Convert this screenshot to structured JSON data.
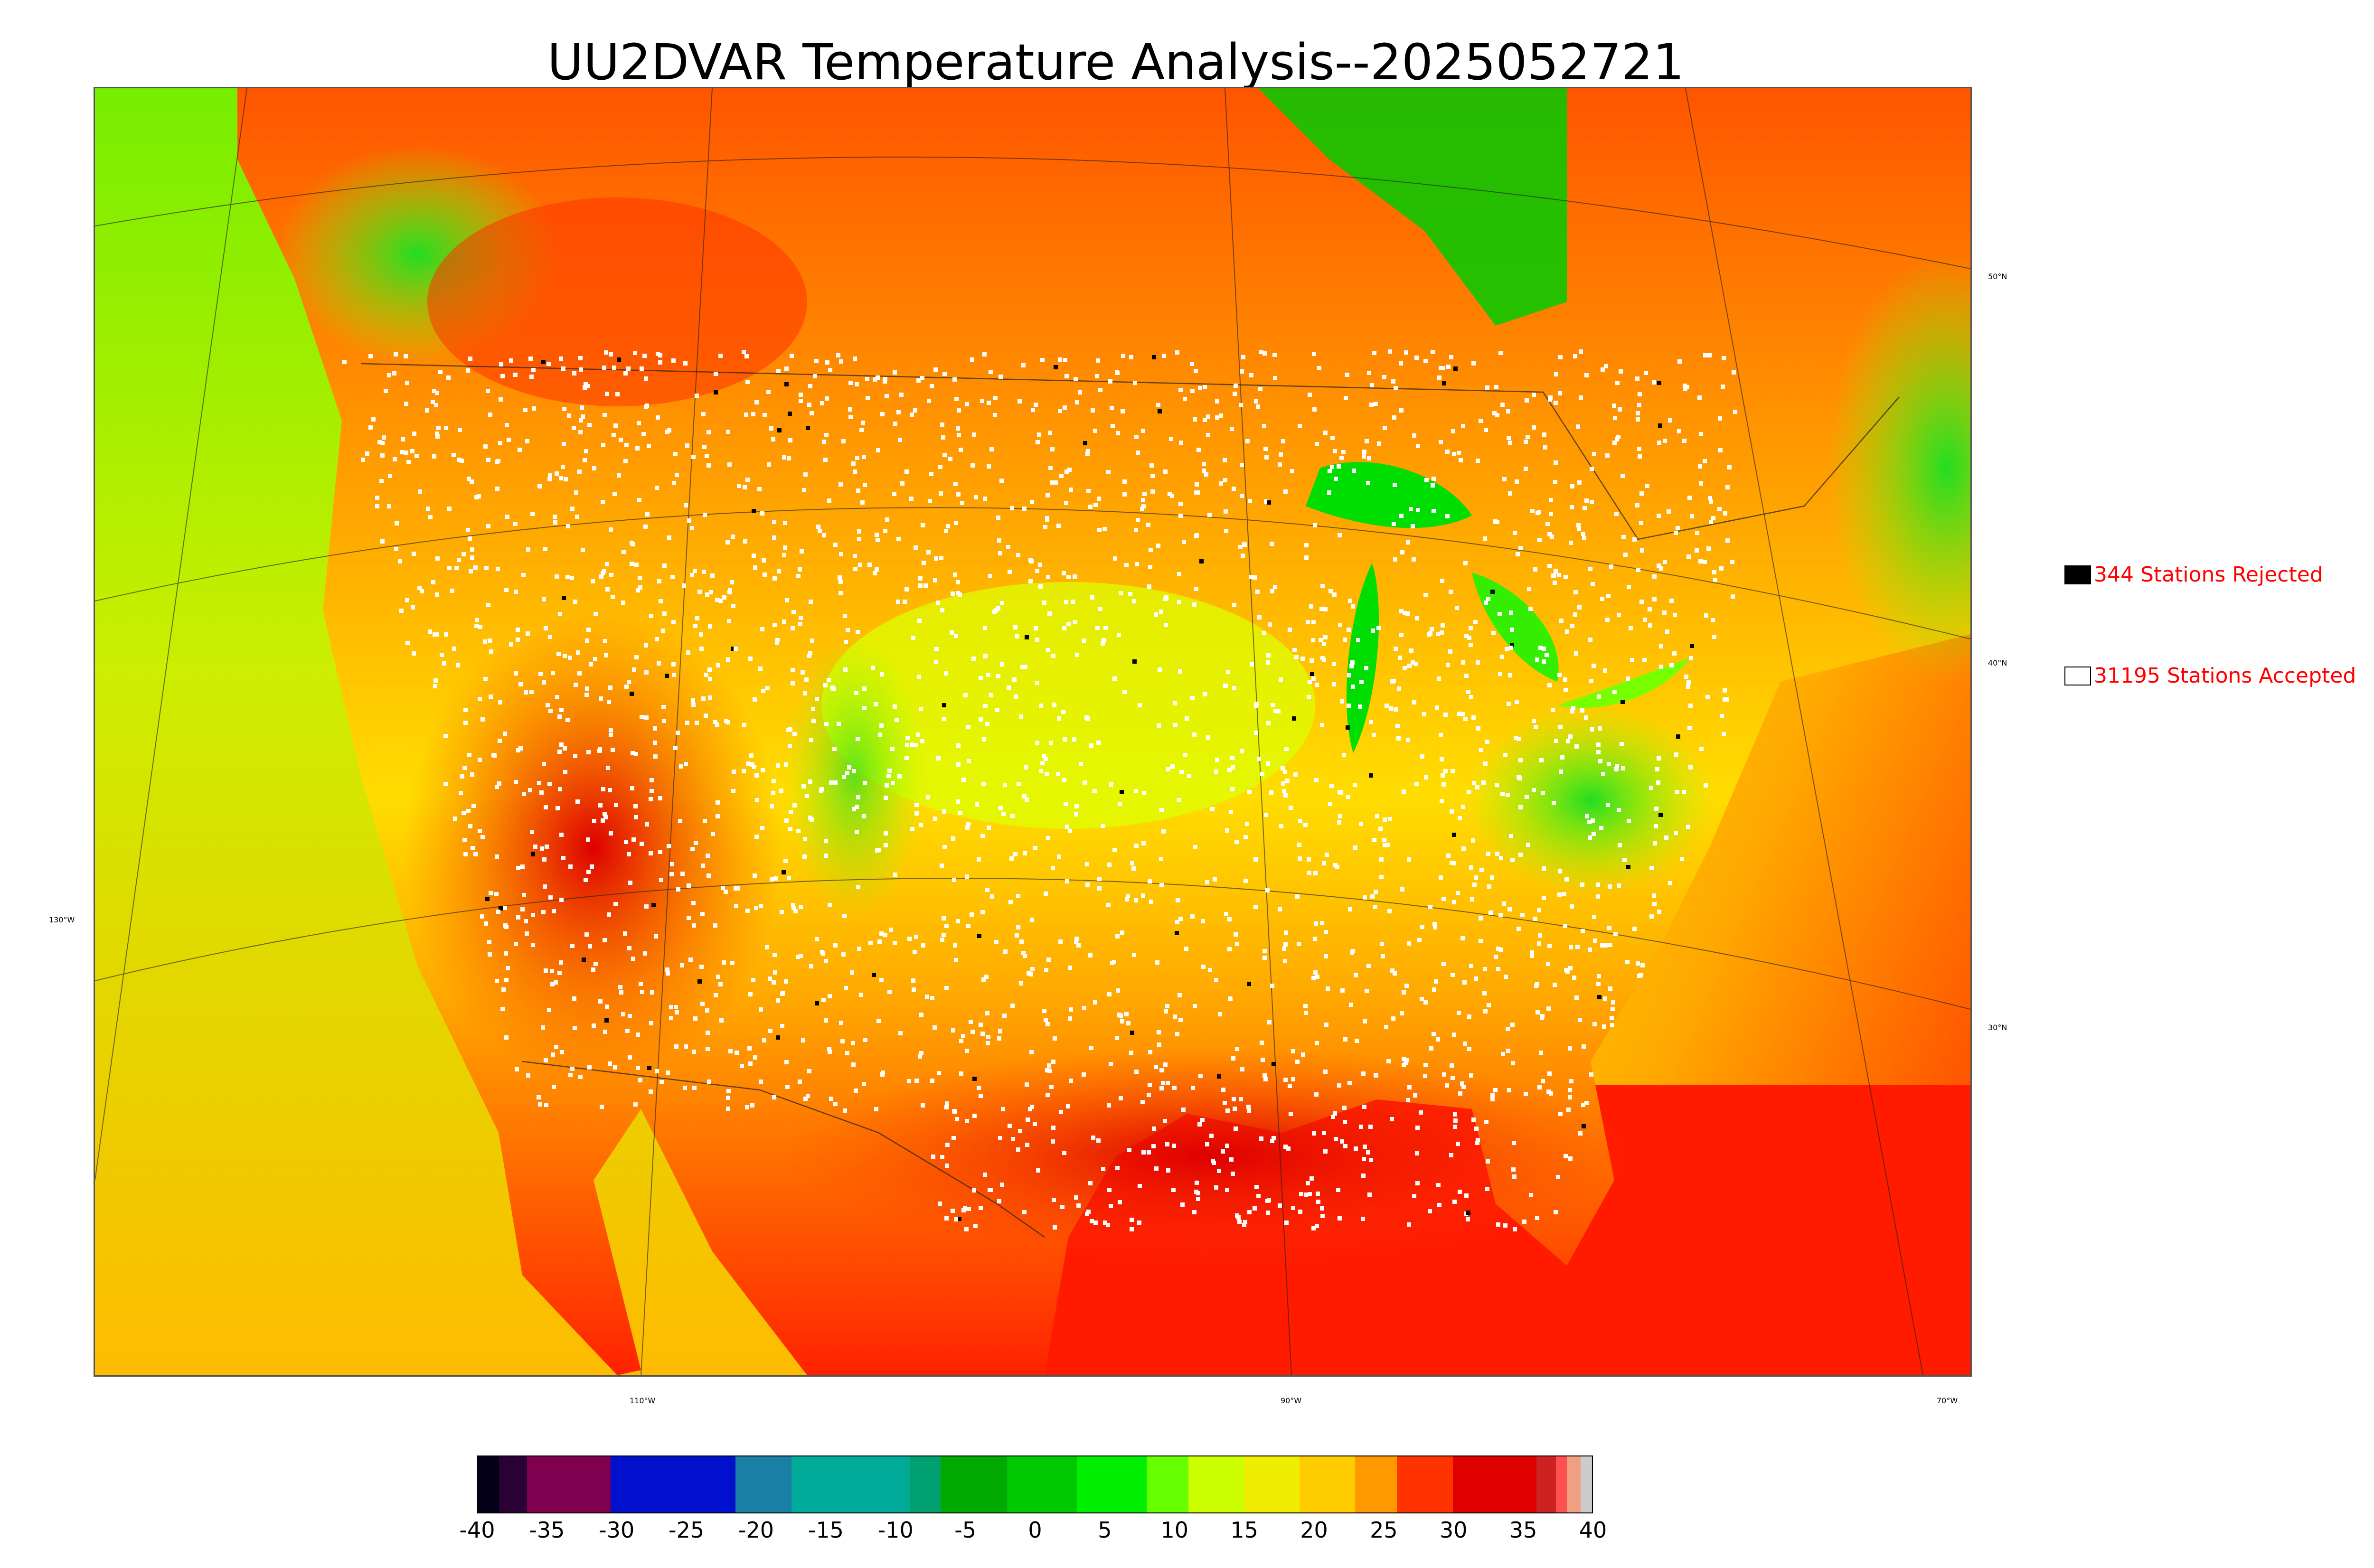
{
  "title": "UU2DVAR Temperature Analysis--2025052721",
  "map": {
    "lat_labels": [
      "50°N",
      "40°N",
      "30°N"
    ],
    "lon_labels": [
      "130°W",
      "110°W",
      "90°W",
      "70°W"
    ]
  },
  "legend": {
    "rejected": {
      "label": "344 Stations Rejected",
      "color": "#000000"
    },
    "accepted": {
      "label": "31195 Stations Accepted",
      "color": "#ffffff"
    }
  },
  "colorbar": {
    "ticks": [
      "-40",
      "-35",
      "-30",
      "-25",
      "-20",
      "-15",
      "-10",
      "-5",
      "0",
      "5",
      "10",
      "15",
      "20",
      "25",
      "30",
      "35",
      "40"
    ],
    "min": -40,
    "max": 40,
    "bands": [
      {
        "from": -40,
        "to": -38.5,
        "color": "#05001a"
      },
      {
        "from": -38.5,
        "to": -36.5,
        "color": "#2a0035"
      },
      {
        "from": -36.5,
        "to": -30.5,
        "color": "#800050"
      },
      {
        "from": -30.5,
        "to": -21.5,
        "color": "#0010cc"
      },
      {
        "from": -21.5,
        "to": -17.5,
        "color": "#1a7fa5"
      },
      {
        "from": -17.5,
        "to": -9,
        "color": "#00aa99"
      },
      {
        "from": -9,
        "to": -6.8,
        "color": "#00a070"
      },
      {
        "from": -6.8,
        "to": -2,
        "color": "#00aa00"
      },
      {
        "from": -2,
        "to": 3,
        "color": "#00c800"
      },
      {
        "from": 3,
        "to": 8,
        "color": "#00ee00"
      },
      {
        "from": 8,
        "to": 11,
        "color": "#66ff00"
      },
      {
        "from": 11,
        "to": 15,
        "color": "#ccff00"
      },
      {
        "from": 15,
        "to": 19,
        "color": "#f0ee00"
      },
      {
        "from": 19,
        "to": 23,
        "color": "#ffcc00"
      },
      {
        "from": 23,
        "to": 26,
        "color": "#ff9900"
      },
      {
        "from": 26,
        "to": 30,
        "color": "#ff3300"
      },
      {
        "from": 30,
        "to": 36,
        "color": "#e00000"
      },
      {
        "from": 36,
        "to": 37.4,
        "color": "#cc2222"
      },
      {
        "from": 37.4,
        "to": 38.2,
        "color": "#ff5050"
      },
      {
        "from": 38.2,
        "to": 39.2,
        "color": "#f0a080"
      },
      {
        "from": 39.2,
        "to": 40,
        "color": "#cccccc"
      }
    ]
  },
  "colors": {
    "ocean_pacific": "#ccee00",
    "ocean_gulf": "#ff1a00",
    "ocean_atlantic": "#ffaa00",
    "canada_north": "#ff5500",
    "cool_green": "#22dd22",
    "hot_red": "#e00000",
    "accepted_station": "#ffffff",
    "rejected_station": "#000000"
  }
}
